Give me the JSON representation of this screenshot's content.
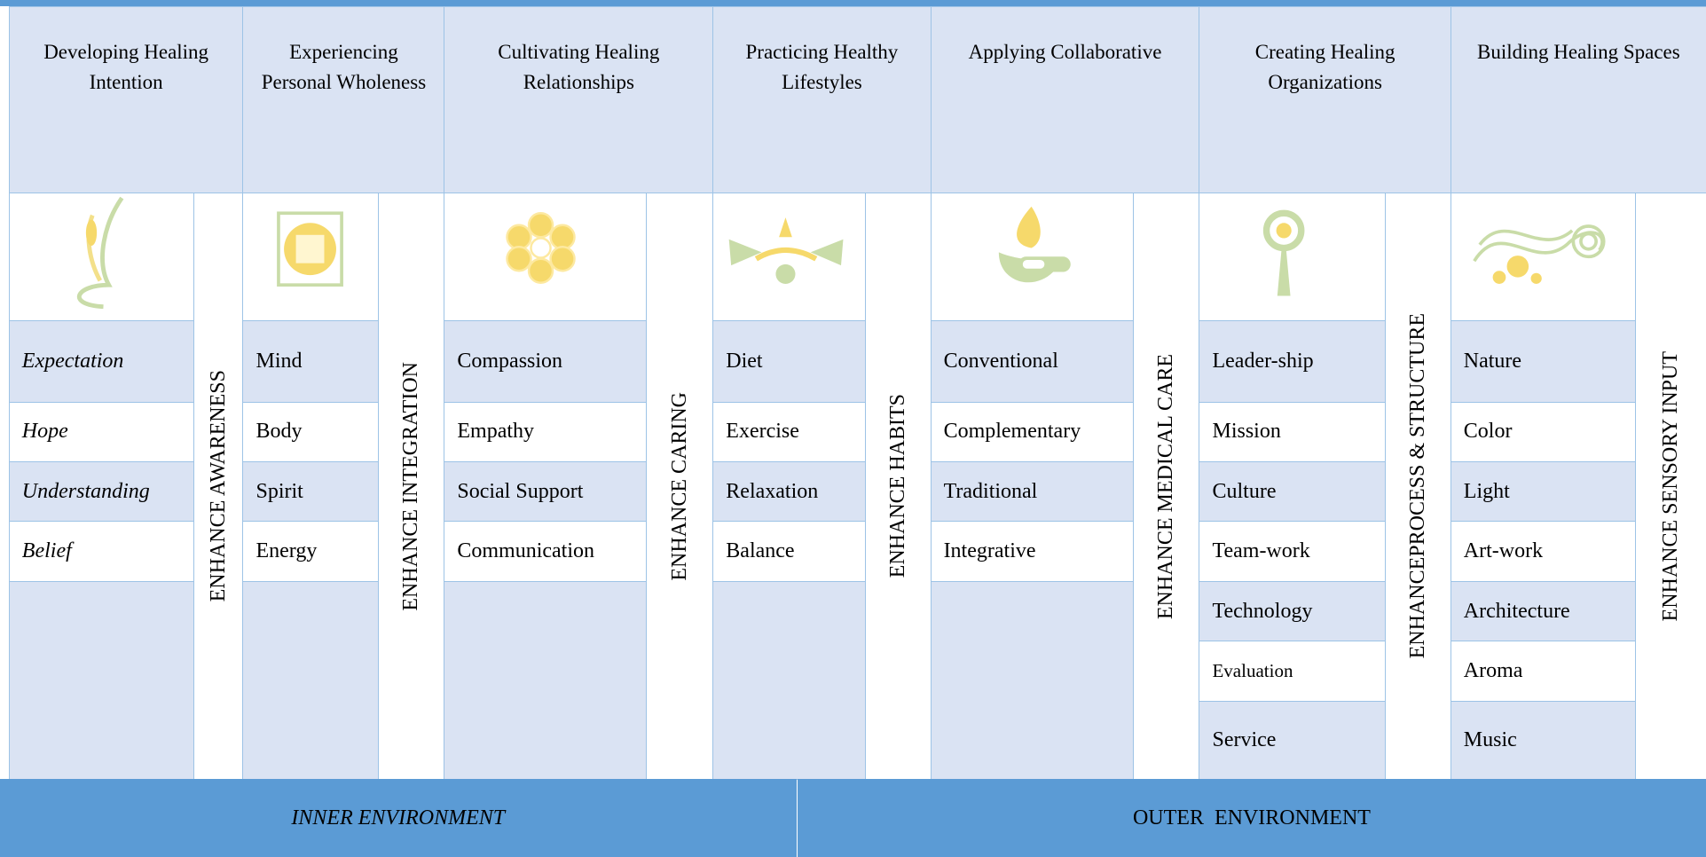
{
  "columns": [
    {
      "title": "Developing Healing Intention",
      "enhance": "ENHANCE AWARENESS",
      "items": [
        "Expectation",
        "Hope",
        "Understanding",
        "Belief"
      ]
    },
    {
      "title": "Experiencing Personal Wholeness",
      "enhance": "ENHANCE INTEGRATION",
      "items": [
        "Mind",
        "Body",
        "Spirit",
        "Energy"
      ]
    },
    {
      "title": "Cultivating Healing Relationships",
      "enhance": "ENHANCE CARING",
      "items": [
        "Compassion",
        "Empathy",
        "Social Support",
        "Communication"
      ]
    },
    {
      "title": "Practicing Healthy Lifestyles",
      "enhance": "ENHANCE HABITS",
      "items": [
        "Diet",
        "Exercise",
        "Relaxation",
        "Balance"
      ]
    },
    {
      "title": "Applying Collaborative",
      "enhance": "ENHANCE MEDICAL CARE",
      "items": [
        "Conventional",
        "Complementary",
        "Traditional",
        "Integrative"
      ]
    },
    {
      "title": "Creating Healing Organizations",
      "enhance": "ENHANCEPROCESS & STRUCTURE",
      "items": [
        "Leader-ship",
        "Mission",
        "Culture",
        "Team-work",
        "Technology",
        "Evaluation",
        "Service"
      ]
    },
    {
      "title": "Building Healing Spaces",
      "enhance": "ENHANCE SENSORY INPUT",
      "items": [
        "Nature",
        "Color",
        "Light",
        "Art-work",
        "Architecture",
        "Aroma",
        "Music"
      ]
    }
  ],
  "footer": {
    "inner": "INNER ENVIRONMENT",
    "outer": "OUTER  ENVIRONMENT"
  }
}
